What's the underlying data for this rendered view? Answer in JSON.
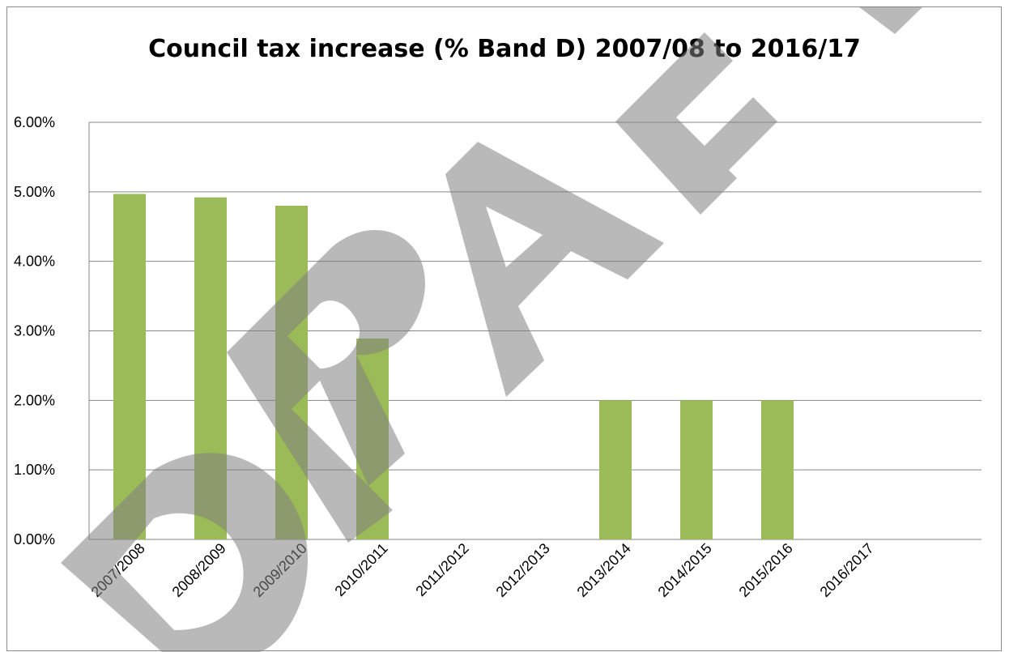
{
  "chart_data": {
    "type": "bar",
    "title": "Council tax increase (% Band D) 2007/08 to 2016/17",
    "xlabel": "",
    "ylabel": "",
    "categories": [
      "2007/2008",
      "2008/2009",
      "2009/2010",
      "2010/2011",
      "2011/2012",
      "2012/2013",
      "2013/2014",
      "2014/2015",
      "2015/2016",
      "2016/2017"
    ],
    "values": [
      4.97,
      4.92,
      4.8,
      2.89,
      0,
      0,
      2.0,
      2.0,
      2.0,
      0
    ],
    "ylim": [
      0,
      6
    ],
    "yticks": [
      "0.00%",
      "1.00%",
      "2.00%",
      "3.00%",
      "4.00%",
      "5.00%",
      "6.00%"
    ],
    "grid": true,
    "legend": "none",
    "bar_color": "#9bbb59",
    "watermark": "DRAFT"
  }
}
